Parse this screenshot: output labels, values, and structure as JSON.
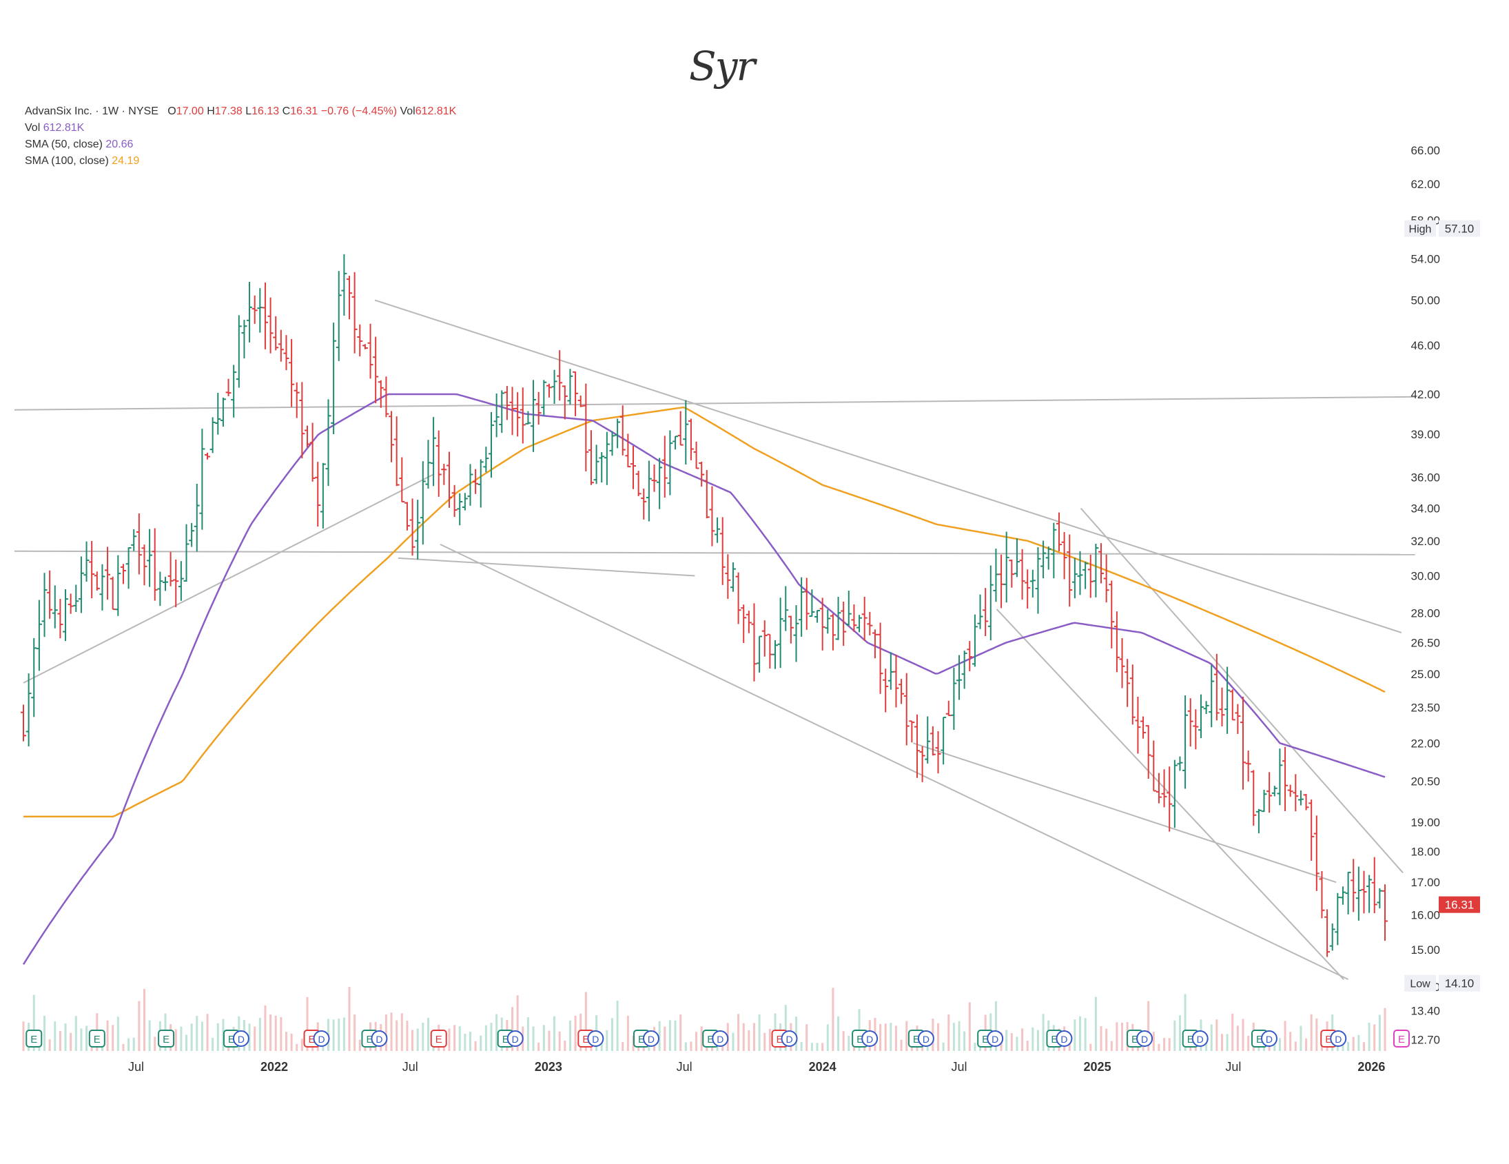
{
  "handwritten_note": "Syr",
  "legend": {
    "symbol": "AdvanSix Inc.",
    "interval": "1W",
    "exchange": "NYSE",
    "o_label": "O",
    "o_value": "17.00",
    "h_label": "H",
    "h_value": "17.38",
    "l_label": "L",
    "l_value": "16.13",
    "c_label": "C",
    "c_value": "16.31",
    "change": "−0.76 (−4.45%)",
    "vol_label": "Vol",
    "vol_value": "612.81K",
    "vol_row_label": "Vol",
    "vol_row_value": "612.81K",
    "sma50_label": "SMA (50, close)",
    "sma50_value": "20.66",
    "sma100_label": "SMA (100, close)",
    "sma100_value": "24.19"
  },
  "markers": {
    "high_label": "High",
    "high_value": "57.10",
    "low_label": "Low",
    "low_value": "14.10",
    "last_price": "16.31"
  },
  "colors": {
    "up": "#1f8a70",
    "down": "#e03b3b",
    "sma50": "#8a5cc6",
    "sma100": "#f0a020",
    "trendline": "#b8b8b8",
    "earnings_green": "#1f8a70",
    "earnings_red": "#e03b3b",
    "dividend_blue": "#3557c8",
    "upcoming_earnings": "#e040c0"
  },
  "chart_data": {
    "type": "ohlc",
    "yscale": "log",
    "ylim": [
      12.2,
      72
    ],
    "y_ticks": [
      "66.00",
      "62.00",
      "58.00",
      "54.00",
      "50.00",
      "46.00",
      "42.00",
      "39.00",
      "36.00",
      "34.00",
      "32.00",
      "30.00",
      "28.00",
      "26.50",
      "25.00",
      "23.50",
      "22.00",
      "20.50",
      "19.00",
      "18.00",
      "17.00",
      "16.00",
      "15.00",
      "14.00",
      "13.40",
      "12.70"
    ],
    "x_ticks": [
      "Jul",
      "2022",
      "Jul",
      "2023",
      "Jul",
      "2024",
      "Jul",
      "2025",
      "Jul",
      "2026"
    ],
    "x_tick_dates": [
      "2021-07-01",
      "2022-01-01",
      "2022-07-01",
      "2023-01-01",
      "2023-07-01",
      "2024-01-01",
      "2024-07-01",
      "2025-01-01",
      "2025-07-01",
      "2026-01-01"
    ],
    "start_date": "2021-02-01",
    "end_date": "2026-01-19",
    "close_anchors": [
      [
        "2021-02-01",
        23.0
      ],
      [
        "2021-03-01",
        28.5
      ],
      [
        "2021-04-01",
        28.0
      ],
      [
        "2021-05-01",
        30.5
      ],
      [
        "2021-06-01",
        29.0
      ],
      [
        "2021-07-01",
        32.5
      ],
      [
        "2021-08-01",
        29.0
      ],
      [
        "2021-09-01",
        30.0
      ],
      [
        "2021-10-01",
        38.0
      ],
      [
        "2021-11-01",
        43.0
      ],
      [
        "2021-12-01",
        50.0
      ],
      [
        "2022-01-01",
        47.0
      ],
      [
        "2022-02-01",
        41.0
      ],
      [
        "2022-03-01",
        33.0
      ],
      [
        "2022-04-01",
        52.0
      ],
      [
        "2022-05-01",
        46.0
      ],
      [
        "2022-06-01",
        40.0
      ],
      [
        "2022-07-01",
        31.5
      ],
      [
        "2022-08-01",
        38.0
      ],
      [
        "2022-09-01",
        33.0
      ],
      [
        "2022-10-01",
        37.0
      ],
      [
        "2022-11-01",
        41.0
      ],
      [
        "2022-12-01",
        39.0
      ],
      [
        "2023-01-01",
        43.0
      ],
      [
        "2023-02-01",
        43.0
      ],
      [
        "2023-03-01",
        36.0
      ],
      [
        "2023-04-01",
        39.0
      ],
      [
        "2023-05-01",
        35.0
      ],
      [
        "2023-06-01",
        36.0
      ],
      [
        "2023-07-01",
        40.0
      ],
      [
        "2023-08-01",
        34.0
      ],
      [
        "2023-09-01",
        30.0
      ],
      [
        "2023-10-01",
        26.0
      ],
      [
        "2023-11-01",
        27.0
      ],
      [
        "2023-12-01",
        28.5
      ],
      [
        "2024-01-01",
        27.0
      ],
      [
        "2024-02-01",
        27.5
      ],
      [
        "2024-03-01",
        27.0
      ],
      [
        "2024-04-01",
        24.5
      ],
      [
        "2024-05-01",
        22.5
      ],
      [
        "2024-06-01",
        21.5
      ],
      [
        "2024-07-01",
        25.0
      ],
      [
        "2024-08-01",
        28.0
      ],
      [
        "2024-09-01",
        30.5
      ],
      [
        "2024-10-01",
        30.0
      ],
      [
        "2024-11-01",
        32.0
      ],
      [
        "2024-12-01",
        29.5
      ],
      [
        "2025-01-01",
        31.0
      ],
      [
        "2025-02-01",
        25.0
      ],
      [
        "2025-03-01",
        22.0
      ],
      [
        "2025-04-01",
        19.5
      ],
      [
        "2025-05-01",
        23.0
      ],
      [
        "2025-06-01",
        24.0
      ],
      [
        "2025-07-01",
        23.5
      ],
      [
        "2025-08-01",
        19.0
      ],
      [
        "2025-09-01",
        21.0
      ],
      [
        "2025-10-01",
        20.0
      ],
      [
        "2025-11-01",
        15.0
      ],
      [
        "2025-12-01",
        17.0
      ],
      [
        "2026-01-19",
        16.31
      ]
    ],
    "sma50_anchors": [
      [
        "2021-02-01",
        14.6
      ],
      [
        "2021-06-01",
        18.5
      ],
      [
        "2021-09-01",
        25.0
      ],
      [
        "2021-12-01",
        33.0
      ],
      [
        "2022-03-01",
        39.0
      ],
      [
        "2022-06-01",
        42.0
      ],
      [
        "2022-09-01",
        42.0
      ],
      [
        "2022-12-01",
        40.5
      ],
      [
        "2023-03-01",
        40.0
      ],
      [
        "2023-06-01",
        37.0
      ],
      [
        "2023-09-01",
        35.0
      ],
      [
        "2023-12-01",
        29.5
      ],
      [
        "2024-03-01",
        26.5
      ],
      [
        "2024-06-01",
        25.0
      ],
      [
        "2024-09-01",
        26.5
      ],
      [
        "2024-12-01",
        27.5
      ],
      [
        "2025-03-01",
        27.0
      ],
      [
        "2025-06-01",
        25.5
      ],
      [
        "2025-09-01",
        22.0
      ],
      [
        "2026-01-19",
        20.66
      ]
    ],
    "sma100_anchors": [
      [
        "2021-02-01",
        19.2
      ],
      [
        "2021-06-01",
        19.2
      ],
      [
        "2021-09-01",
        20.5
      ],
      [
        "2021-12-01",
        24.0
      ],
      [
        "2022-03-01",
        27.5
      ],
      [
        "2022-06-01",
        31.0
      ],
      [
        "2022-09-01",
        35.0
      ],
      [
        "2022-12-01",
        38.0
      ],
      [
        "2023-03-01",
        40.0
      ],
      [
        "2023-07-01",
        41.0
      ],
      [
        "2023-10-01",
        38.0
      ],
      [
        "2024-01-01",
        35.5
      ],
      [
        "2024-06-01",
        33.0
      ],
      [
        "2024-10-01",
        32.0
      ],
      [
        "2025-01-01",
        30.5
      ],
      [
        "2025-06-01",
        28.0
      ],
      [
        "2025-10-01",
        26.0
      ],
      [
        "2026-01-19",
        24.19
      ]
    ]
  }
}
